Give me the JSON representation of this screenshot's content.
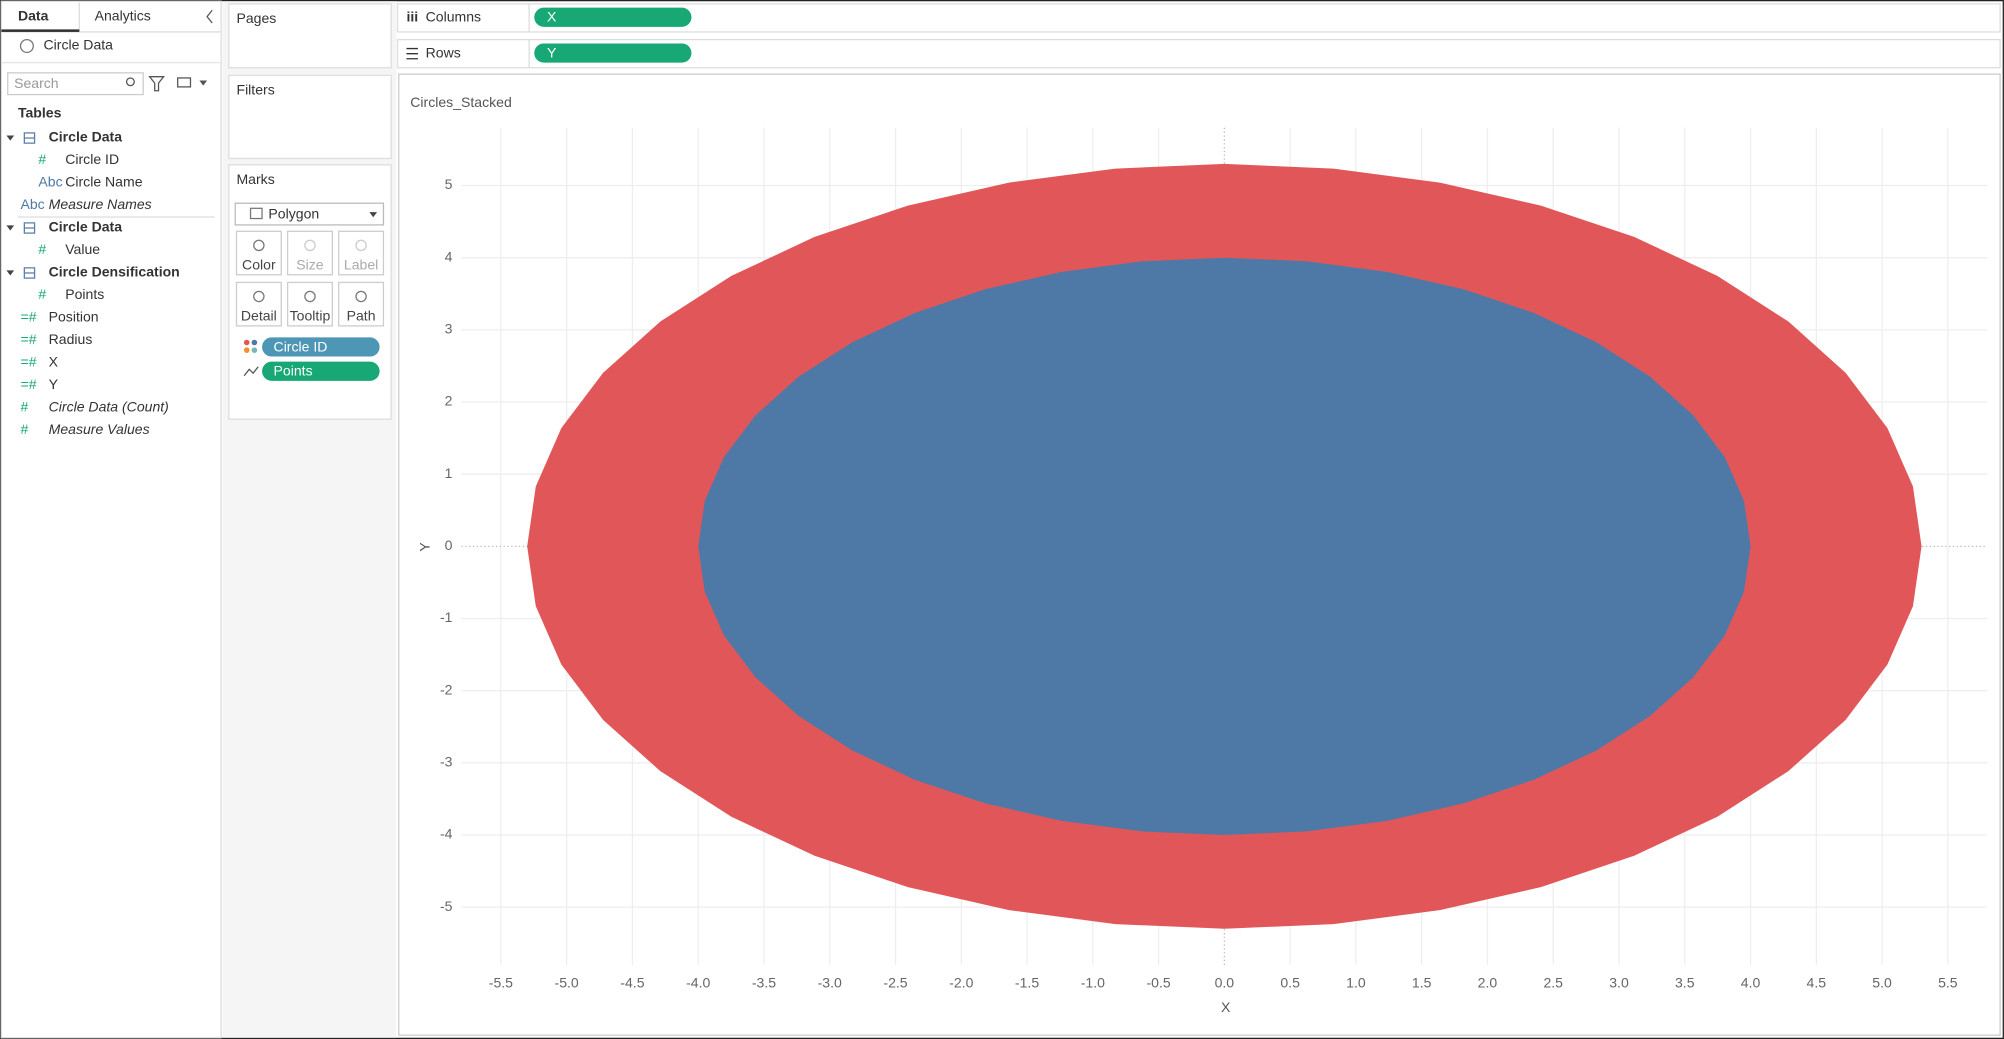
{
  "tabs": [
    "Data",
    "Analytics"
  ],
  "datasource": "Circle Data",
  "search": "Search",
  "tables_heading": "Tables",
  "fields": [
    {
      "name": "Circle Data",
      "table": true
    },
    {
      "name": "Circle ID",
      "icon": "#",
      "indent": true
    },
    {
      "name": "Circle Name",
      "icon": "Abc",
      "indent": true
    },
    {
      "name": "Measure Names",
      "icon": "Abc",
      "italic": true
    },
    {
      "name": "Circle Data",
      "table": true
    },
    {
      "name": "Value",
      "icon": "#",
      "indent": true
    },
    {
      "name": "Circle Densification",
      "table": true
    },
    {
      "name": "Points",
      "icon": "#",
      "indent": true
    },
    {
      "name": "Position",
      "icon": "=#"
    },
    {
      "name": "Radius",
      "icon": "=#"
    },
    {
      "name": "X",
      "icon": "=#"
    },
    {
      "name": "Y",
      "icon": "=#"
    },
    {
      "name": "Circle Data (Count)",
      "icon": "#",
      "italic": true
    },
    {
      "name": "Measure Values",
      "icon": "#",
      "italic": true
    }
  ],
  "shelves": {
    "pages": "Pages",
    "filters": "Filters",
    "marks": "Marks",
    "mark_type": "Polygon",
    "mark_buttons": [
      "Color",
      "Size",
      "Label",
      "Detail",
      "Tooltip",
      "Path"
    ],
    "mark_pills": [
      "Circle ID",
      "Points"
    ],
    "columns": "Columns",
    "rows": "Rows",
    "column_pill": "X",
    "row_pill": "Y"
  },
  "chart_data": {
    "type": "polygon",
    "title": "Circles_Stacked",
    "x_label": "X",
    "y_label": "Y",
    "circles": [
      {
        "center_x": 0,
        "center_y": 0,
        "radius": 5.3,
        "color": "#e15759"
      },
      {
        "center_x": 0,
        "center_y": 0,
        "radius": 4,
        "color": "#4e79a7"
      }
    ],
    "xlim": [
      -5.8,
      5.8
    ],
    "ylim": [
      -5.8,
      5.8
    ],
    "xticks": [
      -5.5,
      {
        "value": -5,
        "label": "-5.0"
      },
      -4.5,
      {
        "value": -4,
        "label": "-4.0"
      },
      -3.5,
      {
        "value": -3,
        "label": "-3.0"
      },
      -2.5,
      {
        "value": -2,
        "label": "-2.0"
      },
      -1.5,
      {
        "value": -1,
        "label": "-1.0"
      },
      -0.5,
      {
        "value": 0,
        "label": "0.0"
      },
      0.5,
      {
        "value": 1,
        "label": "1.0"
      },
      1.5,
      {
        "value": 2,
        "label": "2.0"
      },
      2.5,
      {
        "value": 3,
        "label": "3.0"
      },
      3.5,
      {
        "value": 4,
        "label": "4.0"
      },
      4.5,
      {
        "value": 5,
        "label": "5.0"
      },
      5.5
    ],
    "yticks": [
      -5,
      -4,
      -3,
      -2,
      -1,
      0,
      1,
      2,
      3,
      4,
      5
    ],
    "grid": true
  }
}
